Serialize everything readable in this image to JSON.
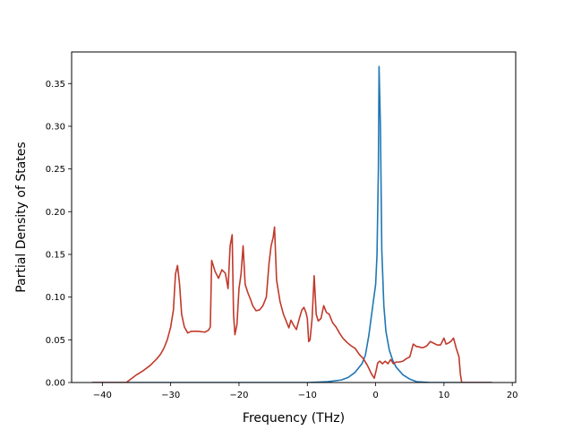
{
  "chart_data": {
    "type": "line",
    "title": "",
    "xlabel": "Frequency (THz)",
    "ylabel": "Partial Density of States",
    "xlim": [
      -44.5,
      20.5
    ],
    "ylim": [
      0,
      0.387
    ],
    "xticks": [
      -40,
      -30,
      -20,
      -10,
      0,
      10,
      20
    ],
    "yticks": [
      0.0,
      0.05,
      0.1,
      0.15,
      0.2,
      0.25,
      0.3,
      0.35
    ],
    "xtick_labels": [
      "−40",
      "−30",
      "−20",
      "−10",
      "0",
      "10",
      "20"
    ],
    "ytick_labels": [
      "0.00",
      "0.05",
      "0.10",
      "0.15",
      "0.20",
      "0.25",
      "0.30",
      "0.35"
    ],
    "grid": false,
    "legend": "none",
    "series": [
      {
        "color": "#1f77b4",
        "x": [
          -41.5,
          -10,
          -7,
          -5,
          -4,
          -3,
          -2,
          -1.5,
          -1,
          -0.5,
          0,
          0.2,
          0.4,
          0.5,
          0.7,
          0.9,
          1.2,
          1.5,
          2,
          2.5,
          3,
          4,
          5,
          6,
          8,
          10,
          12,
          15,
          17
        ],
        "y": [
          0,
          0,
          0.001,
          0.003,
          0.006,
          0.012,
          0.022,
          0.032,
          0.055,
          0.085,
          0.115,
          0.15,
          0.25,
          0.37,
          0.3,
          0.155,
          0.09,
          0.06,
          0.038,
          0.026,
          0.018,
          0.009,
          0.004,
          0.001,
          0,
          0,
          0,
          0,
          0
        ]
      },
      {
        "color": "#c0392b",
        "x": [
          -41.5,
          -36.5,
          -36,
          -35,
          -34,
          -33,
          -32,
          -31.5,
          -31,
          -30.5,
          -30,
          -29.6,
          -29.3,
          -29,
          -28.7,
          -28.4,
          -28,
          -27.5,
          -27,
          -26.5,
          -26,
          -25,
          -24.5,
          -24.2,
          -24,
          -23.5,
          -23,
          -22.5,
          -22,
          -21.6,
          -21.3,
          -21,
          -20.8,
          -20.6,
          -20.3,
          -20,
          -19.7,
          -19.4,
          -19.1,
          -18.7,
          -18.3,
          -18,
          -17.5,
          -17,
          -16.5,
          -16,
          -15.6,
          -15.3,
          -15,
          -14.8,
          -14.5,
          -14,
          -13.5,
          -13,
          -12.7,
          -12.4,
          -12,
          -11.6,
          -11.2,
          -10.8,
          -10.5,
          -10.2,
          -10,
          -9.8,
          -9.6,
          -9.3,
          -9,
          -8.7,
          -8.4,
          -8,
          -7.6,
          -7.2,
          -6.8,
          -6.3,
          -5.8,
          -5.3,
          -4.8,
          -4.2,
          -3.6,
          -3,
          -2.4,
          -1.8,
          -1.2,
          -0.6,
          -0.2,
          0.1,
          0.3,
          0.6,
          1,
          1.4,
          1.8,
          2.2,
          2.6,
          3,
          3.5,
          4,
          4.5,
          5,
          5.5,
          6,
          6.3,
          6.6,
          7,
          7.5,
          8,
          8.5,
          9,
          9.5,
          10,
          10.3,
          10.6,
          11,
          11.4,
          11.8,
          12.2,
          12.4,
          12.6,
          12.8,
          13,
          14,
          15,
          17
        ],
        "y": [
          0,
          0,
          0.003,
          0.009,
          0.014,
          0.02,
          0.028,
          0.033,
          0.04,
          0.05,
          0.065,
          0.085,
          0.127,
          0.137,
          0.115,
          0.08,
          0.065,
          0.058,
          0.06,
          0.06,
          0.06,
          0.059,
          0.061,
          0.065,
          0.143,
          0.13,
          0.122,
          0.132,
          0.128,
          0.11,
          0.16,
          0.173,
          0.08,
          0.056,
          0.068,
          0.11,
          0.127,
          0.16,
          0.115,
          0.105,
          0.097,
          0.09,
          0.084,
          0.085,
          0.09,
          0.1,
          0.14,
          0.16,
          0.17,
          0.182,
          0.12,
          0.095,
          0.08,
          0.07,
          0.064,
          0.073,
          0.067,
          0.062,
          0.074,
          0.085,
          0.088,
          0.082,
          0.075,
          0.048,
          0.05,
          0.075,
          0.125,
          0.08,
          0.072,
          0.075,
          0.09,
          0.082,
          0.08,
          0.07,
          0.065,
          0.058,
          0.052,
          0.047,
          0.043,
          0.04,
          0.033,
          0.028,
          0.02,
          0.01,
          0.005,
          0.015,
          0.023,
          0.025,
          0.022,
          0.025,
          0.022,
          0.027,
          0.022,
          0.024,
          0.024,
          0.025,
          0.028,
          0.03,
          0.045,
          0.042,
          0.042,
          0.041,
          0.041,
          0.043,
          0.048,
          0.046,
          0.044,
          0.044,
          0.052,
          0.045,
          0.046,
          0.048,
          0.052,
          0.04,
          0.03,
          0.01,
          0,
          0,
          0,
          0,
          0,
          0
        ]
      }
    ]
  }
}
